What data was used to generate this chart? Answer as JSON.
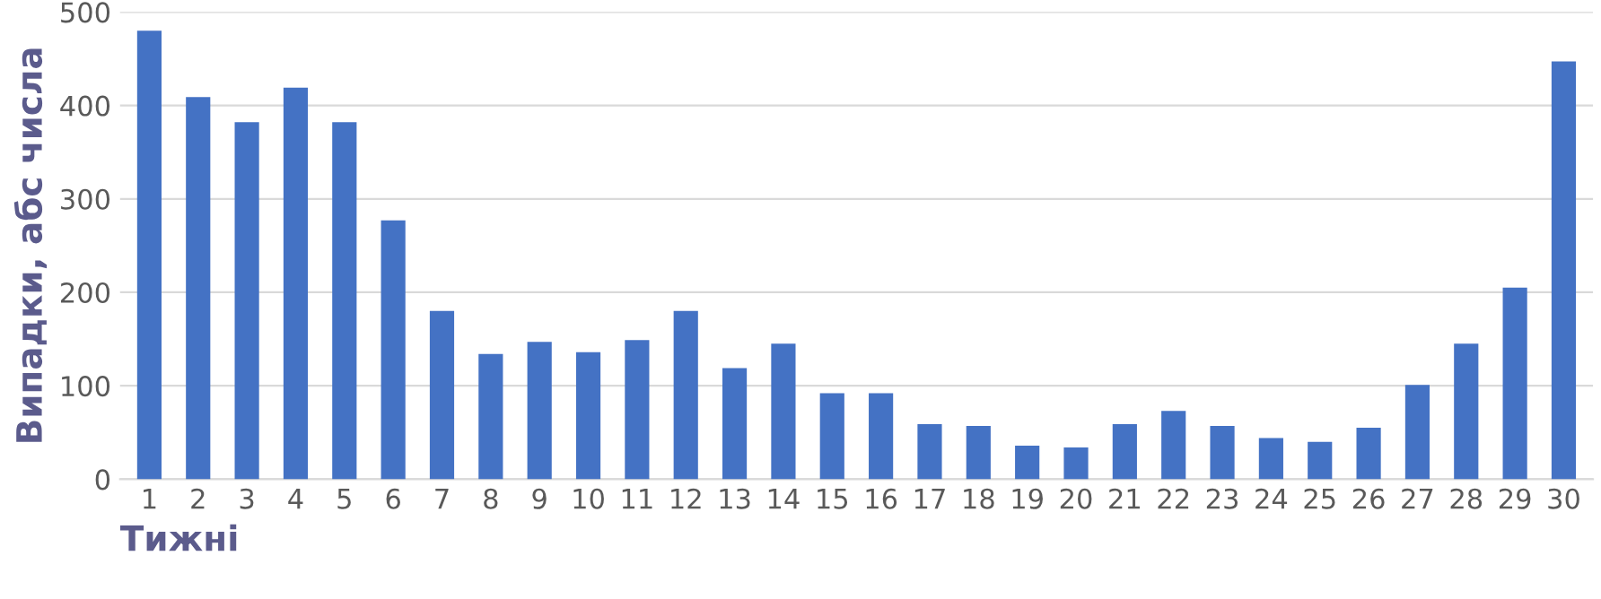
{
  "chart_data": {
    "type": "bar",
    "xlabel": "Тижні",
    "ylabel": "Випадки, абс числа",
    "categories": [
      "1",
      "2",
      "3",
      "4",
      "5",
      "6",
      "7",
      "8",
      "9",
      "10",
      "11",
      "12",
      "13",
      "14",
      "15",
      "16",
      "17",
      "18",
      "19",
      "20",
      "21",
      "22",
      "23",
      "24",
      "25",
      "26",
      "27",
      "28",
      "29",
      "30"
    ],
    "values": [
      480,
      409,
      382,
      419,
      382,
      277,
      180,
      134,
      147,
      136,
      149,
      180,
      119,
      145,
      92,
      92,
      59,
      57,
      36,
      34,
      59,
      73,
      57,
      44,
      40,
      55,
      101,
      145,
      205,
      447
    ],
    "color": "#4472c4",
    "ylim": [
      0,
      500
    ],
    "yticks": [
      0,
      100,
      200,
      300,
      400,
      500
    ],
    "grid": "y",
    "legend": false
  }
}
